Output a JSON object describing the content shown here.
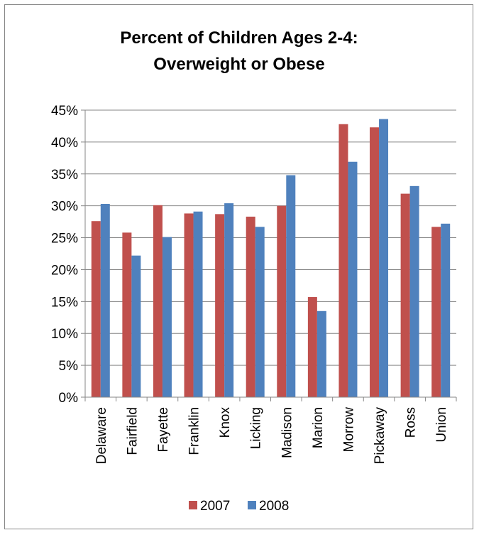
{
  "chart_data": {
    "type": "bar",
    "title_lines": [
      "Percent of Children Ages 2-4:",
      "Overweight or Obese"
    ],
    "categories": [
      "Delaware",
      "Fairfield",
      "Fayette",
      "Franklin",
      "Knox",
      "Licking",
      "Madison",
      "Marion",
      "Morrow",
      "Pickaway",
      "Ross",
      "Union"
    ],
    "series": [
      {
        "name": "2007",
        "color": "#C0504D",
        "values": [
          27.6,
          25.8,
          30.1,
          28.8,
          28.7,
          28.3,
          30.0,
          15.7,
          42.8,
          42.3,
          31.9,
          26.7
        ]
      },
      {
        "name": "2008",
        "color": "#4F81BD",
        "values": [
          30.3,
          22.2,
          25.1,
          29.1,
          30.4,
          26.7,
          34.8,
          13.5,
          36.9,
          43.6,
          33.1,
          27.2
        ]
      }
    ],
    "y_ticks": [
      "0%",
      "5%",
      "10%",
      "15%",
      "20%",
      "25%",
      "30%",
      "35%",
      "40%",
      "45%"
    ],
    "ylim": [
      0,
      45
    ],
    "y_tick_step": 5,
    "grid": true,
    "legend_position": "bottom"
  }
}
